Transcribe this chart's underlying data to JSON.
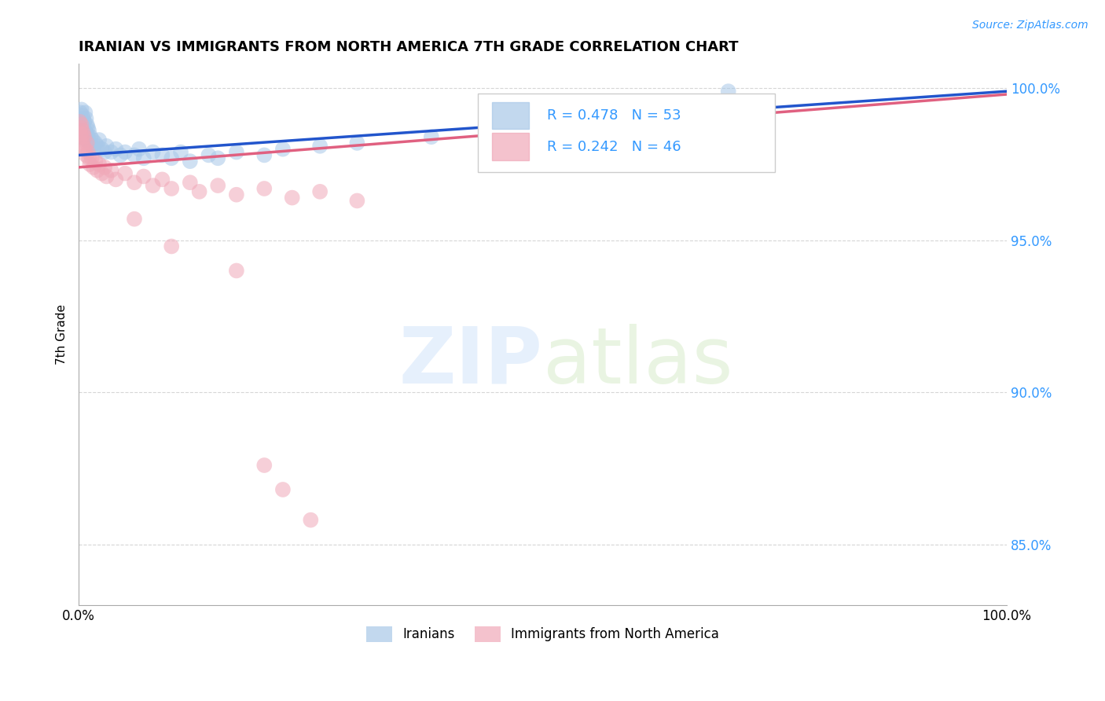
{
  "title": "IRANIAN VS IMMIGRANTS FROM NORTH AMERICA 7TH GRADE CORRELATION CHART",
  "source": "Source: ZipAtlas.com",
  "ylabel": "7th Grade",
  "xlim": [
    0,
    1.0
  ],
  "ylim": [
    0.83,
    1.008
  ],
  "yticks": [
    0.85,
    0.9,
    0.95,
    1.0
  ],
  "ytick_labels": [
    "85.0%",
    "90.0%",
    "95.0%",
    "100.0%"
  ],
  "xticks": [
    0.0,
    1.0
  ],
  "xtick_labels": [
    "0.0%",
    "100.0%"
  ],
  "blue_R": 0.478,
  "blue_N": 53,
  "pink_R": 0.242,
  "pink_N": 46,
  "blue_color": "#A8C8E8",
  "pink_color": "#F0A8B8",
  "blue_line_color": "#2255CC",
  "pink_line_color": "#E06080",
  "legend_label_blue": "Iranians",
  "legend_label_pink": "Immigrants from North America",
  "blue_scatter_x": [
    0.001,
    0.002,
    0.002,
    0.003,
    0.003,
    0.004,
    0.004,
    0.005,
    0.005,
    0.006,
    0.006,
    0.007,
    0.007,
    0.008,
    0.008,
    0.009,
    0.009,
    0.01,
    0.01,
    0.011,
    0.012,
    0.013,
    0.014,
    0.015,
    0.016,
    0.018,
    0.02,
    0.022,
    0.025,
    0.028,
    0.03,
    0.035,
    0.04,
    0.045,
    0.05,
    0.06,
    0.065,
    0.07,
    0.08,
    0.09,
    0.1,
    0.11,
    0.12,
    0.14,
    0.15,
    0.17,
    0.2,
    0.22,
    0.26,
    0.3,
    0.38,
    0.5,
    0.7
  ],
  "blue_scatter_y": [
    0.99,
    0.992,
    0.988,
    0.993,
    0.986,
    0.991,
    0.985,
    0.99,
    0.987,
    0.989,
    0.984,
    0.992,
    0.986,
    0.99,
    0.983,
    0.988,
    0.985,
    0.987,
    0.984,
    0.986,
    0.982,
    0.984,
    0.981,
    0.983,
    0.98,
    0.982,
    0.981,
    0.983,
    0.98,
    0.979,
    0.981,
    0.979,
    0.98,
    0.978,
    0.979,
    0.978,
    0.98,
    0.977,
    0.979,
    0.978,
    0.977,
    0.979,
    0.976,
    0.978,
    0.977,
    0.979,
    0.978,
    0.98,
    0.981,
    0.982,
    0.984,
    0.991,
    0.999
  ],
  "pink_scatter_x": [
    0.001,
    0.002,
    0.002,
    0.003,
    0.003,
    0.004,
    0.004,
    0.005,
    0.005,
    0.006,
    0.007,
    0.008,
    0.009,
    0.01,
    0.011,
    0.012,
    0.014,
    0.016,
    0.018,
    0.02,
    0.022,
    0.025,
    0.028,
    0.03,
    0.035,
    0.04,
    0.05,
    0.06,
    0.07,
    0.08,
    0.09,
    0.1,
    0.12,
    0.13,
    0.15,
    0.17,
    0.2,
    0.23,
    0.26,
    0.3,
    0.06,
    0.1,
    0.17,
    0.2,
    0.22,
    0.25
  ],
  "pink_scatter_y": [
    0.989,
    0.987,
    0.985,
    0.988,
    0.984,
    0.986,
    0.982,
    0.985,
    0.981,
    0.984,
    0.98,
    0.978,
    0.982,
    0.979,
    0.977,
    0.975,
    0.977,
    0.974,
    0.976,
    0.973,
    0.975,
    0.972,
    0.974,
    0.971,
    0.973,
    0.97,
    0.972,
    0.969,
    0.971,
    0.968,
    0.97,
    0.967,
    0.969,
    0.966,
    0.968,
    0.965,
    0.967,
    0.964,
    0.966,
    0.963,
    0.957,
    0.948,
    0.94,
    0.876,
    0.868,
    0.858
  ],
  "blue_trend_x0": 0.0,
  "blue_trend_y0": 0.978,
  "blue_trend_x1": 1.0,
  "blue_trend_y1": 0.999,
  "pink_trend_x0": 0.0,
  "pink_trend_y0": 0.974,
  "pink_trend_x1": 1.0,
  "pink_trend_y1": 0.998
}
